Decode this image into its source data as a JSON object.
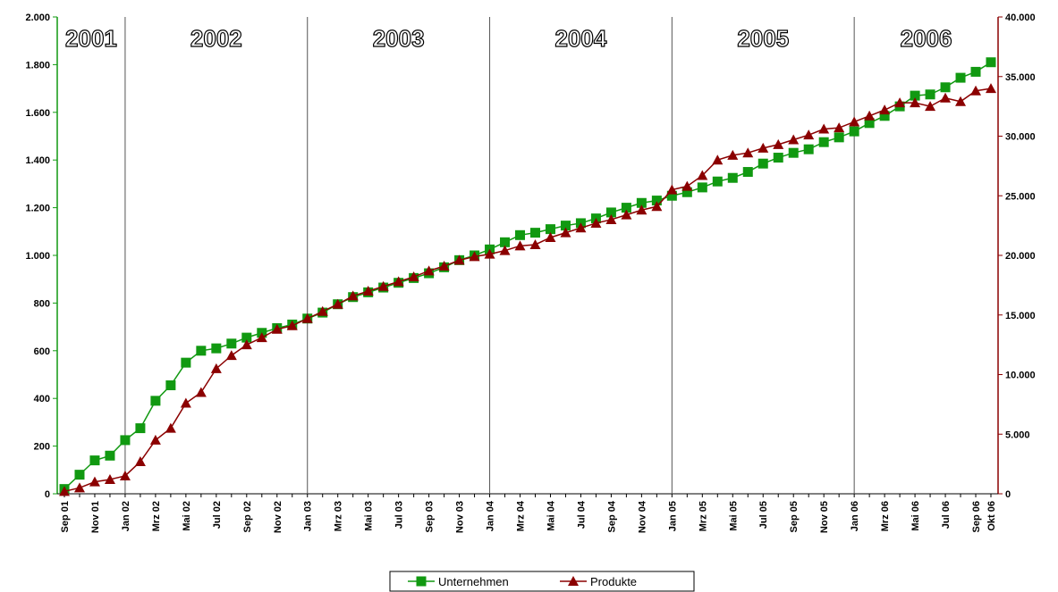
{
  "chart_data": {
    "type": "line",
    "categories": [
      "Sep 01",
      null,
      "Nov 01",
      null,
      "Jan 02",
      null,
      "Mrz 02",
      null,
      "Mai 02",
      null,
      "Jul 02",
      null,
      "Sep 02",
      null,
      "Nov 02",
      null,
      "Jan 03",
      null,
      "Mrz 03",
      null,
      "Mai 03",
      null,
      "Jul 03",
      null,
      "Sep 03",
      null,
      "Nov 03",
      null,
      "Jan 04",
      null,
      "Mrz 04",
      null,
      "Mai 04",
      null,
      "Jul 04",
      null,
      "Sep 04",
      null,
      "Nov 04",
      null,
      "Jan 05",
      null,
      "Mrz 05",
      null,
      "Mai 05",
      null,
      "Jul 05",
      null,
      "Sep 05",
      null,
      "Nov 05",
      null,
      "Jan 06",
      null,
      "Mrz 06",
      null,
      "Mai 06",
      null,
      "Jul 06",
      null,
      "Sep 06",
      "Okt 06"
    ],
    "annotations": [
      "2001",
      "2002",
      "2003",
      "2004",
      "2005",
      "2006"
    ],
    "series": [
      {
        "name": "Unternehmen",
        "color": "#119911",
        "marker": "square",
        "values": [
          20,
          80,
          140,
          160,
          225,
          275,
          390,
          455,
          550,
          600,
          610,
          630,
          655,
          675,
          695,
          710,
          735,
          760,
          795,
          825,
          845,
          865,
          885,
          905,
          925,
          950,
          980,
          1000,
          1025,
          1055,
          1085,
          1095,
          1110,
          1125,
          1135,
          1155,
          1180,
          1200,
          1220,
          1230,
          1250,
          1265,
          1285,
          1310,
          1325,
          1350,
          1385,
          1410,
          1430,
          1445,
          1475,
          1495,
          1520,
          1555,
          1585,
          1625,
          1670,
          1675,
          1705,
          1745,
          1770,
          1810
        ]
      },
      {
        "name": "Produkte",
        "color": "#8b0000",
        "marker": "triangle",
        "axis": "y2",
        "values": [
          200,
          500,
          1000,
          1200,
          1500,
          2700,
          4500,
          5500,
          7600,
          8500,
          10500,
          11600,
          12500,
          13100,
          13800,
          14100,
          14700,
          15300,
          15900,
          16600,
          17000,
          17400,
          17800,
          18200,
          18700,
          19100,
          19600,
          19900,
          20100,
          20400,
          20800,
          20900,
          21500,
          21900,
          22300,
          22700,
          23000,
          23400,
          23800,
          24100,
          25500,
          25800,
          26700,
          28000,
          28400,
          28600,
          29000,
          29300,
          29700,
          30100,
          30600,
          30700,
          31200,
          31700,
          32200,
          32800,
          32800,
          32500,
          33200,
          32900,
          33800,
          34000
        ]
      }
    ],
    "ylim": [
      0,
      2000
    ],
    "yticks": [
      0,
      200,
      400,
      600,
      800,
      {
        "value": 1000,
        "label": "1.000"
      },
      {
        "value": 1200,
        "label": "1.200"
      },
      {
        "value": 1400,
        "label": "1.400"
      },
      {
        "value": 1600,
        "label": "1.600"
      },
      {
        "value": 1800,
        "label": "1.800"
      },
      {
        "value": 2000,
        "label": "2.000"
      }
    ],
    "y2lim": [
      0,
      40000
    ],
    "y2ticks": [
      0,
      {
        "value": 5000,
        "label": "5.000"
      },
      {
        "value": 10000,
        "label": "10.000"
      },
      {
        "value": 15000,
        "label": "15.000"
      },
      {
        "value": 20000,
        "label": "20.000"
      },
      {
        "value": 25000,
        "label": "25.000"
      },
      {
        "value": 30000,
        "label": "30.000"
      },
      {
        "value": 35000,
        "label": "35.000"
      },
      {
        "value": 40000,
        "label": "40.000"
      }
    ],
    "legend": "bottom"
  }
}
